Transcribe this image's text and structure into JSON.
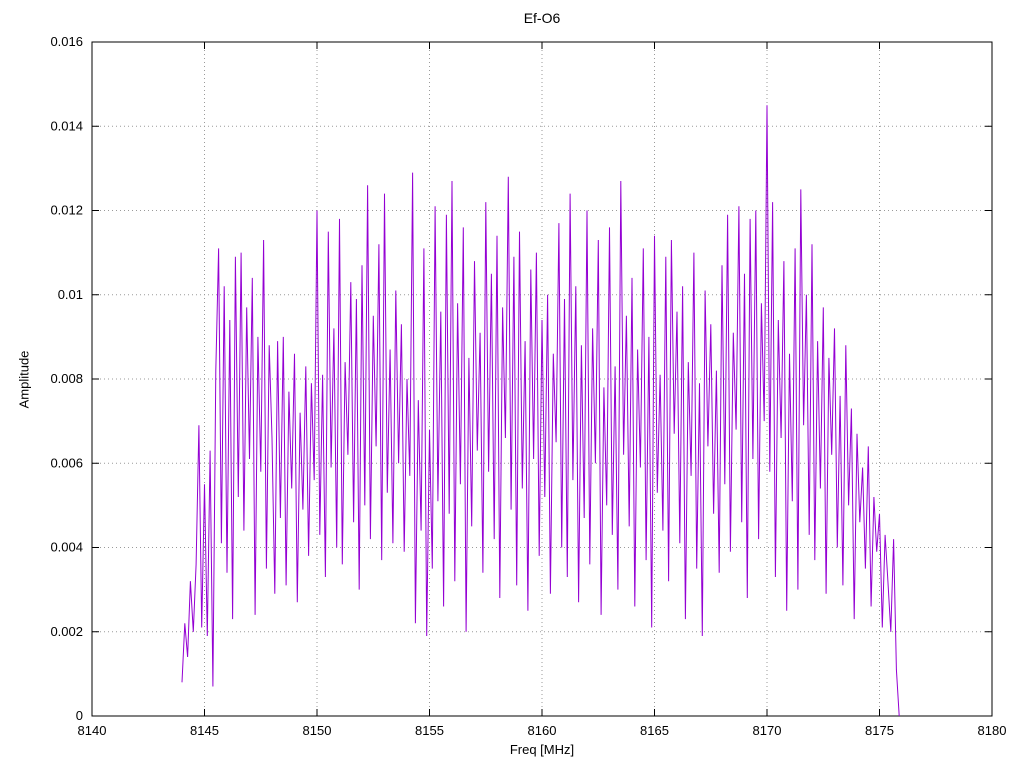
{
  "chart_data": {
    "type": "line",
    "title": "Ef-O6",
    "xlabel": "Freq [MHz]",
    "ylabel": "Amplitude",
    "xlim": [
      8140,
      8180
    ],
    "ylim": [
      0,
      0.016
    ],
    "xticks": [
      8140,
      8145,
      8150,
      8155,
      8160,
      8165,
      8170,
      8175,
      8180
    ],
    "yticks": [
      0,
      0.002,
      0.004,
      0.006,
      0.008,
      0.01,
      0.012,
      0.014,
      0.016
    ],
    "grid": true,
    "grid_color": "#9a9a9a",
    "line_color": "#9400d3",
    "legend": "none",
    "series": [
      {
        "name": "Ef-O6",
        "x_start": 8144.0,
        "x_step": 0.125,
        "values_milli": [
          0.8,
          2.2,
          1.4,
          3.2,
          2.0,
          3.6,
          6.9,
          2.1,
          5.5,
          1.9,
          6.3,
          0.7,
          8.2,
          11.1,
          4.1,
          10.2,
          3.4,
          9.4,
          2.3,
          10.9,
          5.2,
          11.0,
          4.4,
          9.7,
          6.1,
          10.4,
          2.4,
          9.0,
          5.8,
          11.3,
          3.5,
          8.8,
          6.6,
          2.9,
          8.9,
          4.7,
          9.0,
          3.1,
          7.7,
          5.4,
          8.6,
          2.7,
          7.2,
          4.9,
          8.3,
          3.8,
          7.9,
          5.6,
          12.0,
          4.3,
          8.1,
          3.3,
          11.5,
          5.9,
          9.2,
          4.0,
          11.8,
          3.6,
          8.4,
          6.2,
          10.3,
          4.6,
          9.9,
          3.0,
          10.7,
          5.0,
          12.6,
          4.2,
          9.5,
          6.4,
          11.2,
          3.7,
          12.4,
          5.3,
          8.7,
          4.1,
          10.1,
          6.0,
          9.3,
          3.9,
          8.0,
          5.7,
          12.9,
          2.2,
          7.5,
          4.4,
          11.1,
          1.9,
          6.8,
          3.5,
          12.1,
          5.1,
          9.6,
          2.6,
          11.9,
          4.8,
          12.7,
          3.2,
          9.8,
          5.5,
          11.6,
          2.0,
          8.5,
          4.5,
          10.8,
          6.3,
          9.1,
          3.4,
          12.2,
          5.8,
          10.5,
          4.2,
          11.4,
          2.8,
          9.7,
          6.6,
          12.8,
          4.9,
          10.9,
          3.1,
          11.5,
          5.4,
          8.9,
          2.5,
          10.6,
          6.1,
          11.0,
          3.8,
          9.4,
          5.2,
          10.0,
          2.9,
          8.6,
          6.5,
          11.7,
          4.0,
          9.9,
          3.3,
          12.4,
          5.6,
          10.2,
          2.7,
          8.8,
          4.7,
          12.0,
          3.6,
          9.2,
          6.0,
          11.3,
          2.4,
          7.8,
          5.0,
          11.6,
          4.3,
          8.3,
          3.0,
          12.7,
          6.2,
          9.5,
          4.5,
          10.4,
          2.6,
          8.7,
          5.9,
          11.1,
          3.7,
          9.0,
          2.1,
          11.4,
          5.3,
          8.1,
          4.4,
          10.9,
          3.2,
          11.3,
          6.7,
          9.6,
          4.1,
          10.2,
          2.3,
          8.4,
          5.7,
          11.0,
          3.5,
          7.9,
          1.9,
          10.1,
          6.4,
          9.3,
          4.8,
          8.2,
          3.4,
          10.7,
          5.5,
          11.9,
          3.9,
          9.1,
          6.8,
          12.1,
          4.6,
          10.5,
          2.8,
          11.8,
          6.1,
          12.0,
          4.2,
          9.8,
          7.0,
          14.5,
          5.8,
          12.2,
          3.3,
          9.4,
          6.6,
          10.8,
          2.5,
          8.6,
          5.1,
          11.1,
          3.0,
          12.5,
          6.9,
          10.0,
          4.3,
          11.2,
          3.7,
          8.9,
          5.4,
          9.7,
          2.9,
          8.5,
          6.2,
          9.2,
          4.0,
          7.6,
          3.1,
          8.8,
          5.0,
          7.3,
          2.3,
          6.7,
          4.6,
          5.9,
          3.5,
          6.4,
          2.6,
          5.2,
          3.9,
          4.8,
          2.1,
          4.3,
          3.2,
          2.0,
          4.2,
          1.1,
          0.0
        ]
      }
    ]
  }
}
